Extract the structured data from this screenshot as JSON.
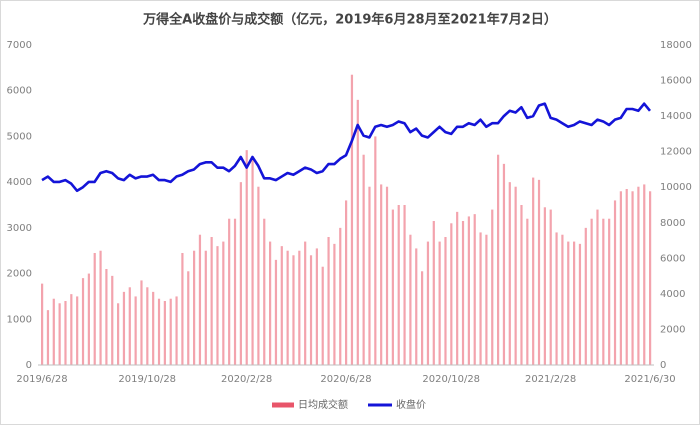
{
  "chart_data": {
    "type": "bar_line",
    "title": "万得全A收盘价与成交额（亿元，2019年6月28月至2021年7月2日）",
    "categories": [
      "2019/6/28",
      null,
      null,
      null,
      null,
      null,
      null,
      null,
      null,
      null,
      null,
      null,
      null,
      null,
      null,
      null,
      null,
      null,
      "2019/10/28",
      null,
      null,
      null,
      null,
      null,
      null,
      null,
      null,
      null,
      null,
      null,
      null,
      null,
      null,
      null,
      null,
      "2020/2/28",
      null,
      null,
      null,
      null,
      null,
      null,
      null,
      null,
      null,
      null,
      null,
      null,
      null,
      null,
      null,
      null,
      "2020/6/28",
      null,
      null,
      null,
      null,
      null,
      null,
      null,
      null,
      null,
      null,
      null,
      null,
      null,
      null,
      null,
      null,
      null,
      "2020/10/28",
      null,
      null,
      null,
      null,
      null,
      null,
      null,
      null,
      null,
      null,
      null,
      null,
      null,
      null,
      null,
      null,
      "2021/2/28",
      null,
      null,
      null,
      null,
      null,
      null,
      null,
      null,
      null,
      null,
      null,
      null,
      null,
      null,
      null,
      null,
      "2021/6/30"
    ],
    "series": [
      {
        "name": "日均成交额",
        "color": "#f3a3ad",
        "legend_color": "#e8556a",
        "axis": "y",
        "values": [
          1780,
          1200,
          1450,
          1350,
          1400,
          1550,
          1500,
          1900,
          2000,
          2450,
          2500,
          2100,
          1950,
          1350,
          1600,
          1700,
          1500,
          1850,
          1700,
          1600,
          1450,
          1400,
          1450,
          1500,
          2450,
          2050,
          2500,
          2850,
          2500,
          2800,
          2600,
          2700,
          3200,
          3200,
          4000,
          4700,
          4500,
          3900,
          3200,
          2700,
          2300,
          2600,
          2500,
          2400,
          2500,
          2700,
          2400,
          2550,
          2150,
          2800,
          2650,
          3000,
          3600,
          6350,
          5800,
          4600,
          3900,
          5000,
          3950,
          3900,
          3400,
          3500,
          3500,
          2850,
          2550,
          2050,
          2700,
          3150,
          2700,
          2800,
          3100,
          3350,
          3150,
          3250,
          3300,
          2900,
          2850,
          3400,
          4600,
          4400,
          4000,
          3900,
          3500,
          3200,
          4100,
          4050,
          3450,
          3400,
          2900,
          2850,
          2700,
          2700,
          2650,
          3000,
          3200,
          3400,
          3200,
          3200,
          3600,
          3800,
          3850,
          3800,
          3900,
          3950,
          3800
        ]
      },
      {
        "name": "收盘价",
        "color": "#1414d8",
        "axis": "y2",
        "values": [
          10400,
          10600,
          10300,
          10300,
          10400,
          10200,
          9800,
          10000,
          10300,
          10300,
          10800,
          10900,
          10800,
          10500,
          10400,
          10700,
          10500,
          10600,
          10600,
          10700,
          10400,
          10400,
          10300,
          10600,
          10700,
          10900,
          11000,
          11300,
          11400,
          11400,
          11100,
          11100,
          10900,
          11200,
          11700,
          11100,
          11700,
          11200,
          10500,
          10500,
          10400,
          10600,
          10800,
          10700,
          10900,
          11100,
          11000,
          10800,
          10900,
          11300,
          11300,
          11600,
          11800,
          12600,
          13500,
          12900,
          12800,
          13400,
          13500,
          13400,
          13500,
          13700,
          13600,
          13100,
          13300,
          12900,
          12800,
          13100,
          13400,
          13100,
          13000,
          13400,
          13400,
          13600,
          13500,
          13800,
          13400,
          13600,
          13600,
          14000,
          14300,
          14200,
          14500,
          13900,
          14000,
          14600,
          14700,
          13900,
          13800,
          13600,
          13400,
          13500,
          13700,
          13600,
          13500,
          13800,
          13700,
          13500,
          13800,
          13900,
          14400,
          14400,
          14300,
          14700,
          14300
        ]
      }
    ],
    "ylim": [
      0,
      7000
    ],
    "yticks": [
      0,
      1000,
      2000,
      3000,
      4000,
      5000,
      6000,
      7000
    ],
    "y2lim": [
      0,
      18000
    ],
    "y2ticks": [
      0,
      2000,
      4000,
      6000,
      8000,
      10000,
      12000,
      14000,
      16000,
      18000
    ],
    "grid": false,
    "legend": "bottom"
  }
}
